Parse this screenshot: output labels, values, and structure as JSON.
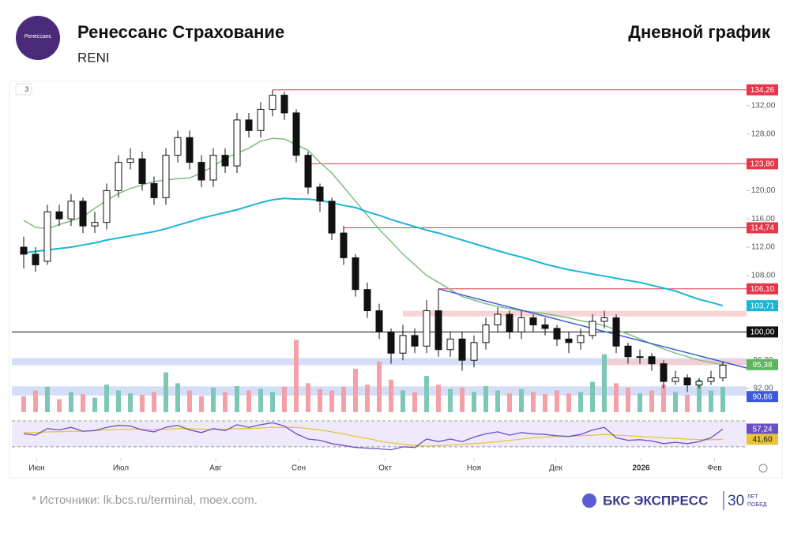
{
  "chart_data": {
    "type": "candlestick",
    "title": "Ренессанс Страхование",
    "ticker": "RENI",
    "subtitle": "Дневной график",
    "logo_text": "Ренессанс",
    "indicator_count": "3",
    "footnote": "* Источники: lk.bcs.ru/terminal, moex.com.",
    "brand": "БКС ЭКСПРЕСС",
    "brand_badge": [
      "30",
      "ЛЕТ",
      "ПОБЕД"
    ],
    "xlim": [
      -1,
      61
    ],
    "xticks": [
      {
        "value": 1.1,
        "label": "Июн"
      },
      {
        "value": 8.2,
        "label": "Июл"
      },
      {
        "value": 16.2,
        "label": "Авг"
      },
      {
        "value": 23.2,
        "label": "Сен"
      },
      {
        "value": 30.5,
        "label": "Окт"
      },
      {
        "value": 38,
        "label": "Ноя"
      },
      {
        "value": 44.9,
        "label": "Дек"
      },
      {
        "value": 52.1,
        "label": "2026"
      },
      {
        "value": 58.3,
        "label": "Фев"
      }
    ],
    "ylim": [
      88.87,
      135.24
    ],
    "yticks": [
      {
        "value": 92,
        "label": "92,00"
      },
      {
        "value": 96,
        "label": "96,00"
      },
      {
        "value": 100,
        "label": "100,00"
      },
      {
        "value": 104,
        "label": "104,00"
      },
      {
        "value": 108,
        "label": "108,00"
      },
      {
        "value": 112,
        "label": "112,00"
      },
      {
        "value": 116,
        "label": "116,00"
      },
      {
        "value": 120,
        "label": "120,00"
      },
      {
        "value": 124,
        "label": "124,00"
      },
      {
        "value": 128,
        "label": "128,00"
      },
      {
        "value": 132,
        "label": "132,00"
      }
    ],
    "up_color": "#ffffff",
    "down_color": "#111111",
    "open": [
      112,
      111,
      110,
      117,
      116,
      118.5,
      115,
      115.5,
      120,
      124,
      124.5,
      121,
      119,
      125,
      127.5,
      124,
      121.5,
      125,
      123.5,
      130,
      128.5,
      131.5,
      133.5,
      131,
      125,
      120.5,
      118.5,
      114,
      110.5,
      106,
      103,
      100,
      97,
      99.5,
      98,
      103,
      97.5,
      99,
      96,
      98.5,
      101,
      102.5,
      100,
      102,
      101,
      100.5,
      99,
      98.5,
      99.5,
      101.5,
      102,
      98,
      96.5,
      96.5,
      95.5,
      93,
      93.5,
      92.5,
      93,
      93.5
    ],
    "high": [
      113.5,
      112,
      118,
      118,
      119.5,
      119,
      117,
      121,
      125,
      126,
      125.5,
      122,
      126,
      128.5,
      128.5,
      125,
      126,
      126,
      131,
      131,
      132.5,
      134.26,
      134,
      131.5,
      125.5,
      121,
      119,
      115,
      111,
      107,
      104,
      100.5,
      101,
      100.5,
      104.5,
      106.1,
      100,
      100,
      99.5,
      102,
      103.5,
      103,
      103,
      102.5,
      102,
      101,
      100,
      100.5,
      102.5,
      103,
      102.5,
      98.5,
      97.5,
      97,
      96,
      94.5,
      94,
      93.5,
      94.5,
      95.8
    ],
    "low": [
      109,
      108.5,
      109.5,
      115,
      115,
      114,
      114,
      114.5,
      119,
      123,
      120,
      118,
      118,
      124,
      123,
      120.5,
      120.5,
      122.5,
      122.5,
      127.5,
      127.5,
      130.5,
      130,
      124,
      119.5,
      117,
      113,
      109.5,
      105,
      102,
      99,
      95.5,
      96,
      97,
      97,
      96.5,
      96.5,
      94.5,
      95,
      97.5,
      100,
      99,
      99,
      100,
      99.5,
      98,
      97,
      97.5,
      99,
      100.5,
      97,
      95.5,
      95.5,
      94.5,
      92,
      92.5,
      91.5,
      92,
      92.5,
      93
    ],
    "close": [
      111,
      109.5,
      117,
      116,
      118.5,
      115,
      115.5,
      120,
      124,
      124.5,
      121,
      119,
      125,
      127.5,
      124,
      121.5,
      125,
      123.5,
      130,
      128.5,
      131.5,
      133.5,
      131,
      125,
      120.5,
      118.5,
      114,
      110.5,
      106,
      103,
      100,
      97,
      99.5,
      98,
      103,
      97.5,
      99,
      96,
      98.5,
      101,
      102.5,
      100,
      102,
      101,
      100.5,
      99,
      98.5,
      99.5,
      101.5,
      102,
      98,
      96.5,
      96.5,
      95.5,
      93,
      93.5,
      92.5,
      93,
      93.5,
      95.3
    ],
    "ma_lines": [
      {
        "color": "#7dbf7d",
        "values": [
          115.8,
          114.8,
          114.6,
          115.2,
          115.7,
          116.3,
          117.5,
          118.6,
          119.6,
          120.3,
          120.8,
          121.3,
          121.5,
          121.7,
          121.8,
          122.5,
          123.5,
          124.5,
          125.3,
          126,
          127,
          127.4,
          127.3,
          126.5,
          125.7,
          124,
          122.5,
          120.5,
          118.5,
          116.5,
          114.5,
          112.8,
          111,
          109.5,
          108,
          107,
          106,
          105,
          104.5,
          104,
          103.6,
          103.3,
          103,
          102.8,
          102.6,
          102.3,
          102,
          101.6,
          101.3,
          100.9,
          100.3,
          99.7,
          99,
          98.3,
          97.6,
          97,
          96.5,
          96,
          95.7,
          95.38
        ]
      },
      {
        "color": "#1ab6d6",
        "values": [
          111.2,
          111.4,
          111.6,
          111.8,
          112,
          112.3,
          112.6,
          113,
          113.3,
          113.6,
          113.9,
          114.2,
          114.6,
          115.1,
          115.6,
          116.1,
          116.5,
          116.9,
          117.3,
          117.8,
          118.3,
          118.7,
          118.9,
          118.8,
          118.8,
          118.6,
          118.3,
          117.9,
          117.6,
          117,
          116.5,
          115.9,
          115.4,
          114.9,
          114.4,
          114,
          113.5,
          113,
          112.5,
          112,
          111.5,
          111,
          110.6,
          110.1,
          109.6,
          109.2,
          108.8,
          108.5,
          108.2,
          107.9,
          107.6,
          107.3,
          107,
          106.6,
          106.2,
          105.8,
          105.2,
          104.6,
          104.2,
          103.71
        ]
      }
    ],
    "zones": [
      {
        "from": 95.3,
        "to": 96.3,
        "start": -1,
        "color": "#c9d6f5"
      },
      {
        "from": 91.0,
        "to": 92.3,
        "start": -1,
        "color": "#c9d6f5"
      },
      {
        "from": 102.2,
        "to": 103.0,
        "start": 32,
        "color": "#f8c9cc"
      },
      {
        "from": 95.3,
        "to": 96.1,
        "start": 49,
        "color": "#f8c9cc"
      }
    ],
    "levels": [
      {
        "value": 134.26,
        "label": "134,26",
        "color": "#e5364a",
        "start": 21
      },
      {
        "value": 123.8,
        "label": "123,80",
        "color": "#e5364a",
        "start": 24.3
      },
      {
        "value": 114.74,
        "label": "114,74",
        "color": "#e5364a",
        "start": 27
      },
      {
        "value": 106.1,
        "label": "106,10",
        "color": "#e5364a",
        "start": 35
      },
      {
        "value": 103.71,
        "label": "103,71",
        "color": "#1ab6d6"
      },
      {
        "value": 100,
        "label": "100,00",
        "color": "#111111",
        "start": -1
      },
      {
        "value": 95.38,
        "label": "95,38",
        "color": "#5fb35f"
      },
      {
        "value": 90.86,
        "label": "90,86",
        "color": "#3b5bdb"
      }
    ],
    "trendline": {
      "x": [
        35,
        61
      ],
      "y": [
        106.1,
        94.9
      ],
      "color": "#3b5bdb"
    },
    "volume": {
      "ylim": [
        0,
        120
      ],
      "up_color": "#7cc7b5",
      "down_color": "#f4a0a8",
      "values": [
        22,
        30,
        35,
        18,
        28,
        25,
        20,
        38,
        30,
        26,
        24,
        28,
        55,
        40,
        30,
        22,
        34,
        28,
        36,
        30,
        32,
        28,
        35,
        100,
        40,
        32,
        30,
        35,
        60,
        38,
        70,
        45,
        30,
        28,
        50,
        38,
        32,
        34,
        28,
        36,
        30,
        26,
        32,
        28,
        25,
        30,
        26,
        28,
        42,
        80,
        40,
        34,
        26,
        30,
        38,
        28,
        24,
        45,
        30,
        35
      ]
    },
    "rsi": {
      "ylim": [
        25,
        76
      ],
      "levels": [
        70,
        30
      ],
      "values": [
        50,
        48,
        58,
        56,
        60,
        54,
        55,
        60,
        63,
        62,
        56,
        53,
        60,
        63,
        56,
        52,
        58,
        55,
        64,
        60,
        64,
        67,
        62,
        50,
        42,
        40,
        35,
        32,
        29,
        28,
        27,
        25.5,
        30,
        29,
        42,
        38,
        42,
        38,
        45,
        50,
        53,
        48,
        52,
        50,
        49,
        47,
        46,
        49,
        56,
        60,
        44,
        40,
        41,
        39,
        35,
        37,
        35,
        38,
        44,
        57.24
      ],
      "ma": [
        52,
        52,
        53,
        53,
        54,
        54,
        55,
        56,
        57,
        57,
        57,
        57,
        57,
        58,
        58,
        57,
        57,
        57,
        58,
        58,
        59,
        60,
        60,
        60,
        58,
        56,
        53,
        50,
        46,
        43,
        39,
        36,
        34,
        32,
        31,
        32,
        33,
        34,
        35,
        36,
        38,
        40,
        42,
        44,
        45,
        46,
        46,
        47,
        48,
        49,
        48,
        47,
        46,
        45,
        44,
        43,
        42,
        41,
        41,
        41.6
      ],
      "color": "#6a4fc4",
      "ma_color": "#e8c43a",
      "labels": [
        {
          "value": 57.24,
          "label": "57,24"
        },
        {
          "value": 41.6,
          "label": "41,60"
        }
      ]
    }
  }
}
